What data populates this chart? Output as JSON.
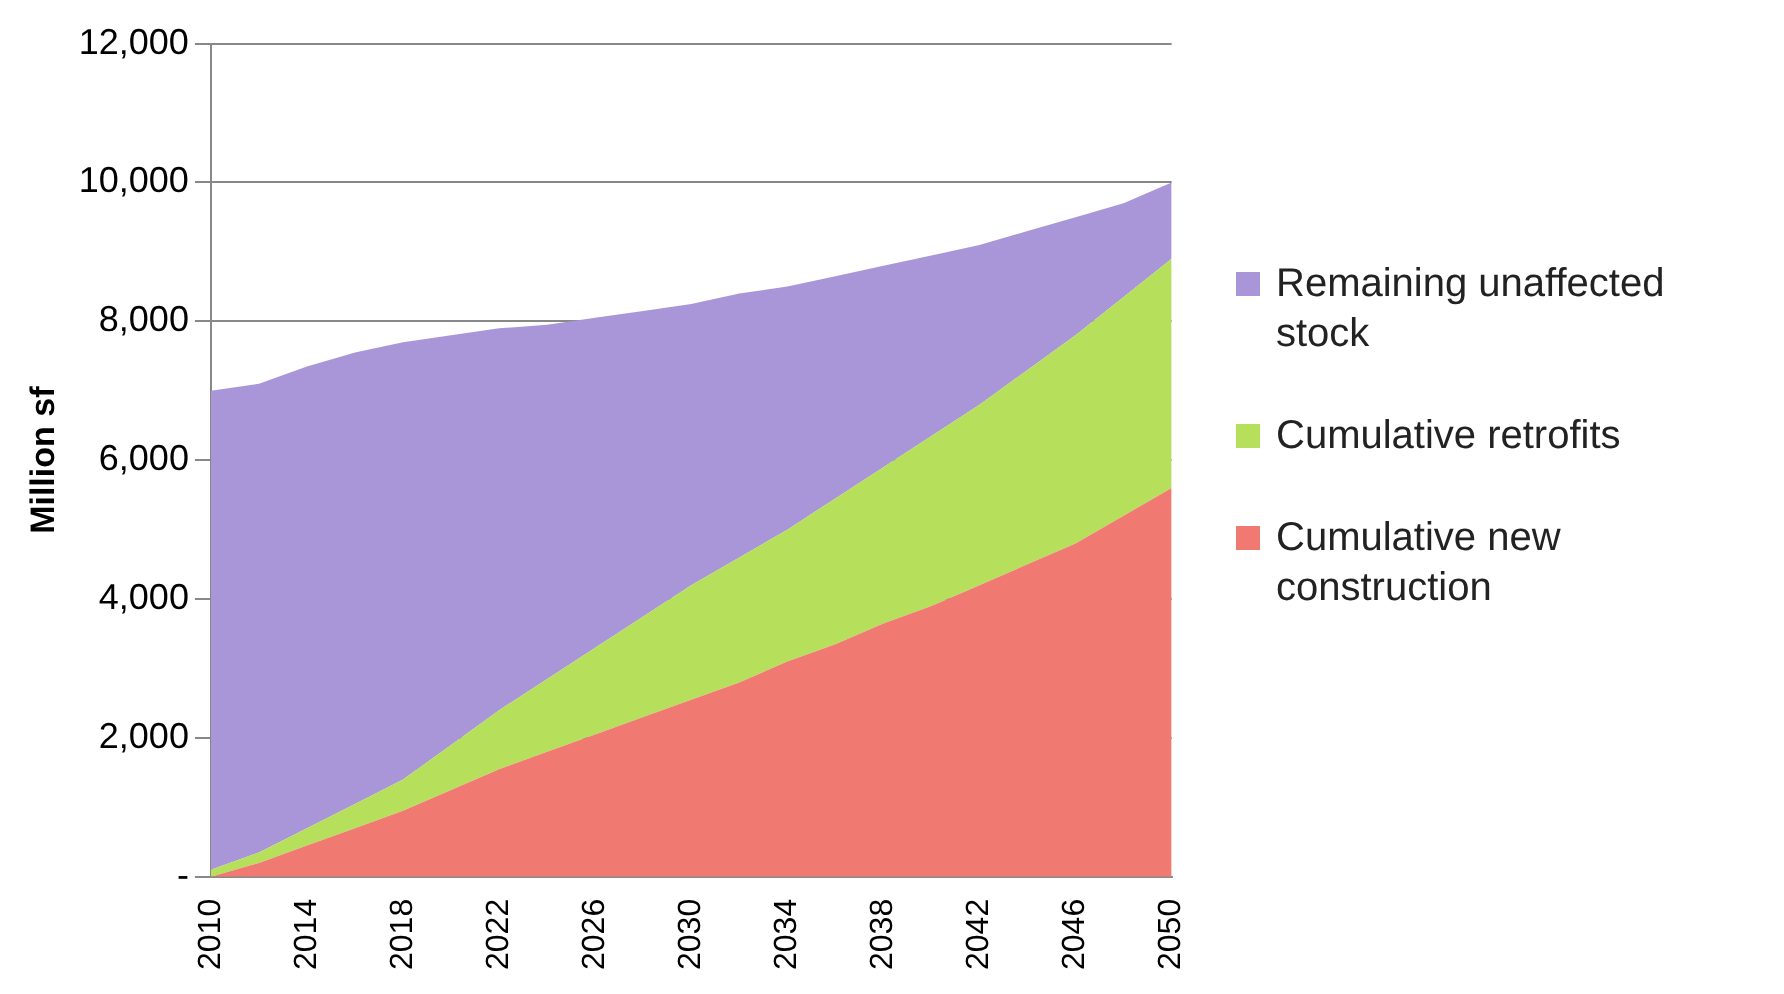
{
  "chart_data": {
    "type": "area",
    "ylabel": "Million sf",
    "stacked": true,
    "grid": "y",
    "legend": "right",
    "marker": "none",
    "x": [
      2010,
      2012,
      2014,
      2016,
      2018,
      2020,
      2022,
      2024,
      2026,
      2028,
      2030,
      2032,
      2034,
      2036,
      2038,
      2040,
      2042,
      2044,
      2046,
      2048,
      2050
    ],
    "xlim": [
      2010,
      2050
    ],
    "xticks": [
      2010,
      2014,
      2018,
      2022,
      2026,
      2030,
      2034,
      2038,
      2042,
      2046,
      2050
    ],
    "ylim": [
      0,
      12000
    ],
    "yticks": [
      {
        "value": 0,
        "label": "-"
      },
      {
        "value": 2000,
        "label": "2,000"
      },
      {
        "value": 4000,
        "label": "4,000"
      },
      {
        "value": 6000,
        "label": "6,000"
      },
      {
        "value": 8000,
        "label": "8,000"
      },
      {
        "value": 10000,
        "label": "10,000"
      },
      {
        "value": 12000,
        "label": "12,000"
      }
    ],
    "series": [
      {
        "name": "Cumulative new construction",
        "color": "#f07a72",
        "values": [
          0,
          200,
          450,
          700,
          950,
          1250,
          1550,
          1800,
          2050,
          2300,
          2550,
          2800,
          3100,
          3350,
          3650,
          3900,
          4200,
          4500,
          4800,
          5200,
          5600
        ]
      },
      {
        "name": "Cumulative retrofits",
        "color": "#b6df5c",
        "values": [
          100,
          150,
          250,
          350,
          450,
          650,
          850,
          1050,
          1250,
          1450,
          1650,
          1800,
          1900,
          2100,
          2250,
          2450,
          2600,
          2800,
          3000,
          3150,
          3300
        ]
      },
      {
        "name": "Remaining unaffected stock",
        "color": "#a996d8",
        "values": [
          6900,
          6750,
          6650,
          6500,
          6300,
          5900,
          5500,
          5100,
          4750,
          4400,
          4050,
          3800,
          3500,
          3200,
          2900,
          2600,
          2300,
          2000,
          1700,
          1350,
          1100
        ]
      }
    ]
  }
}
